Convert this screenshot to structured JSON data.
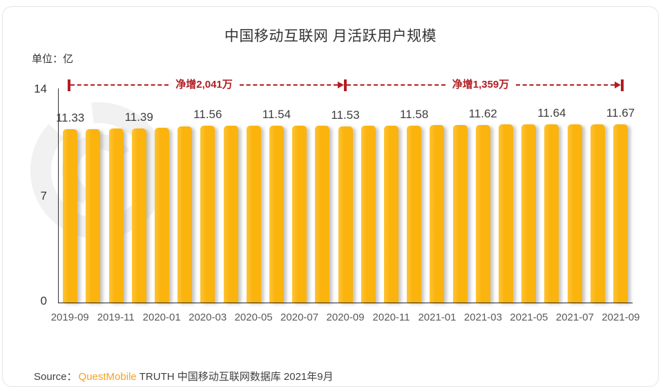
{
  "chart_data": {
    "type": "bar",
    "title": "中国移动互联网 月活跃用户规模",
    "unit_label": "单位：亿",
    "ylim": [
      0,
      14
    ],
    "ytick_labels": [
      "14",
      "7",
      "0"
    ],
    "grid": false,
    "legend": "none",
    "bar_color": "#FBB30E",
    "annotation_color": "#B01E23",
    "categories": [
      "2019-09",
      "2019-10",
      "2019-11",
      "2019-12",
      "2020-01",
      "2020-02",
      "2020-03",
      "2020-04",
      "2020-05",
      "2020-06",
      "2020-07",
      "2020-08",
      "2020-09",
      "2020-10",
      "2020-11",
      "2020-12",
      "2021-01",
      "2021-02",
      "2021-03",
      "2021-04",
      "2021-05",
      "2021-06",
      "2021-07",
      "2021-08",
      "2021-09"
    ],
    "values": [
      11.33,
      11.34,
      11.36,
      11.39,
      11.43,
      11.5,
      11.56,
      11.57,
      11.55,
      11.54,
      11.55,
      11.54,
      11.53,
      11.55,
      11.56,
      11.58,
      11.6,
      11.61,
      11.62,
      11.63,
      11.63,
      11.64,
      11.65,
      11.66,
      11.67
    ],
    "bar_labels": [
      "11.33",
      null,
      null,
      "11.39",
      null,
      null,
      "11.56",
      null,
      null,
      "11.54",
      null,
      null,
      "11.53",
      null,
      null,
      "11.58",
      null,
      null,
      "11.62",
      null,
      null,
      "11.64",
      null,
      null,
      "11.67"
    ],
    "x_tick_labels": [
      "2019-09",
      "2019-11",
      "2020-01",
      "2020-03",
      "2020-05",
      "2020-07",
      "2020-09",
      "2020-11",
      "2021-01",
      "2021-03",
      "2021-05",
      "2021-07",
      "2021-09"
    ],
    "annotations": [
      {
        "text": "净增2,041万",
        "from": "2019-09",
        "to": "2020-09"
      },
      {
        "text": "净增1,359万",
        "from": "2020-09",
        "to": "2021-09"
      }
    ]
  },
  "source": {
    "prefix": "Source：",
    "brand": "QuestMobile",
    "rest": "TRUTH 中国移动互联网数据库 2021年9月"
  }
}
